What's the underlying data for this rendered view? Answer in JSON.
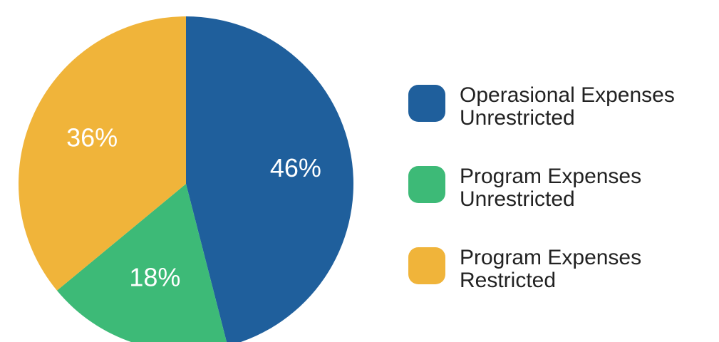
{
  "chart_data": {
    "type": "pie",
    "title": "",
    "categories": [
      "Operasional Expenses Unrestricted",
      "Program Expenses Unrestricted",
      "Program Expenses Restricted"
    ],
    "values": [
      46,
      18,
      36
    ],
    "value_labels": [
      "46%",
      "18%",
      "36%"
    ],
    "colors": [
      "#1f5f9c",
      "#3dba77",
      "#f0b43a"
    ],
    "legend": {
      "placement": "right",
      "entries": [
        {
          "line1": "Operasional Expenses",
          "line2": "Unrestricted",
          "color": "#1f5f9c"
        },
        {
          "line1": "Program Expenses",
          "line2": "Unrestricted",
          "color": "#3dba77"
        },
        {
          "line1": "Program Expenses",
          "line2": "Restricted",
          "color": "#f0b43a"
        }
      ]
    }
  }
}
